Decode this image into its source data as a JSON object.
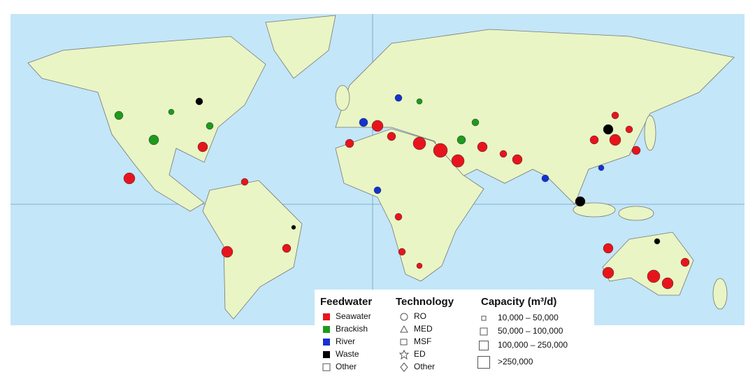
{
  "legend": {
    "feedwater": {
      "title": "Feedwater",
      "items": [
        "Seawater",
        "Brackish",
        "River",
        "Waste",
        "Other"
      ]
    },
    "technology": {
      "title": "Technology",
      "items": [
        "RO",
        "MED",
        "MSF",
        "ED",
        "Other"
      ]
    },
    "capacity": {
      "title": "Capacity (m³/d)",
      "items": [
        "10,000 – 50,000",
        "50,000 – 100,000",
        "100,000 – 250,000",
        ">250,000"
      ]
    }
  }
}
